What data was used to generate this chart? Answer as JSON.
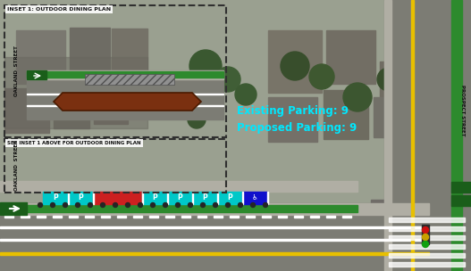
{
  "fig_width": 5.27,
  "fig_height": 3.04,
  "bg_aerial_color": "#9aa090",
  "inset_label": "INSET 1: OUTDOOR DINING PLAN",
  "inset_ref_label": "SEE INSET 1 ABOVE FOR OUTDOOR DINING PLAN",
  "parking_text_line1": "Existing Parking: 9",
  "parking_text_line2": "Proposed Parking: 9",
  "parking_text_color": "#00e8ff",
  "road_color": "#808078",
  "road_gray": "#787870",
  "sidewalk_color": "#b8b8a8",
  "bike_green": "#2d8a2d",
  "bike_green_dark": "#1a5e1a",
  "cyan_park": "#00c8c8",
  "red_park": "#cc2020",
  "blue_ada": "#1010cc",
  "white": "#ffffff",
  "yellow": "#e8c000",
  "dashed_color": "#303030",
  "brown_barrier": "#7a3010",
  "hatch_gray": "#808080",
  "oakland_label": "OAKLAND  STREET",
  "prospect_label": "PROSPECT STREET",
  "text_black": "#101010",
  "semi_white_bg": "#e8e8e0"
}
